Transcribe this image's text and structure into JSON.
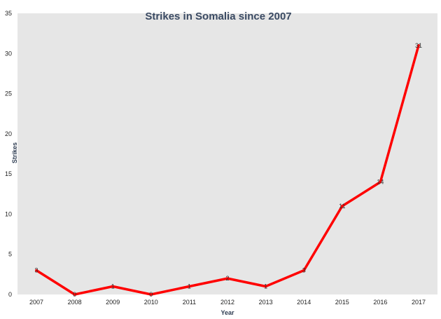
{
  "chart_data": {
    "type": "line",
    "title": "Strikes in Somalia since 2007",
    "xlabel": "Year",
    "ylabel": "Strikes",
    "categories": [
      "2007",
      "2008",
      "2009",
      "2010",
      "2011",
      "2012",
      "2013",
      "2014",
      "2015",
      "2016",
      "2017"
    ],
    "series": [
      {
        "values": [
          3,
          0,
          1,
          0,
          1,
          2,
          1,
          3,
          11,
          14,
          31
        ],
        "color": "#ff0000"
      }
    ],
    "ylim": [
      0,
      35
    ],
    "yticks": [
      0,
      5,
      10,
      15,
      20,
      25,
      30,
      35
    ],
    "grid": false,
    "legend": "none",
    "plot_background": "#e6e6e6",
    "data_labels": true
  }
}
